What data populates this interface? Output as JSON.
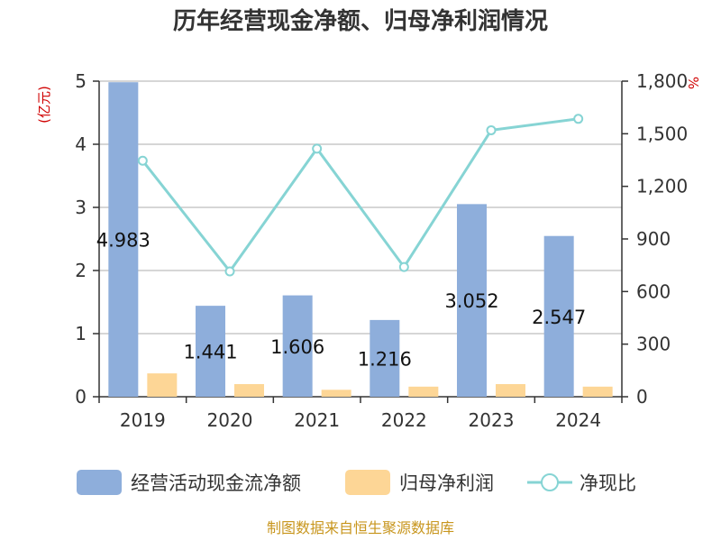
{
  "chart_data": {
    "type": "bar",
    "title": "历年经营现金净额、归母净利润情况",
    "categories": [
      "2019",
      "2020",
      "2021",
      "2022",
      "2023",
      "2024"
    ],
    "left_axis": {
      "unit": "(亿元)",
      "ylim": [
        0,
        5
      ],
      "ticks": [
        "0",
        "1",
        "2",
        "3",
        "4",
        "5"
      ]
    },
    "right_axis": {
      "unit": "%",
      "ylim": [
        0,
        1800
      ],
      "ticks": [
        "0",
        "300",
        "600",
        "900",
        "1,200",
        "1,500",
        "1,800"
      ]
    },
    "series": [
      {
        "name": "经营活动现金流净额",
        "type": "bar",
        "axis": "left",
        "color": "#8eaedb",
        "values": [
          4.983,
          1.441,
          1.606,
          1.216,
          3.052,
          2.547
        ],
        "labels": [
          "4.983",
          "1.441",
          "1.606",
          "1.216",
          "3.052",
          "2.547"
        ]
      },
      {
        "name": "归母净利润",
        "type": "bar",
        "axis": "left",
        "color": "#fdd696",
        "values": [
          0.37,
          0.2,
          0.11,
          0.16,
          0.2,
          0.16
        ]
      },
      {
        "name": "净现比",
        "type": "line",
        "axis": "right",
        "color": "#86d4d4",
        "values": [
          1346,
          715,
          1415,
          740,
          1520,
          1585
        ]
      }
    ],
    "grid": true,
    "legend_position": "bottom"
  },
  "source": "制图数据来自恒生聚源数据库"
}
